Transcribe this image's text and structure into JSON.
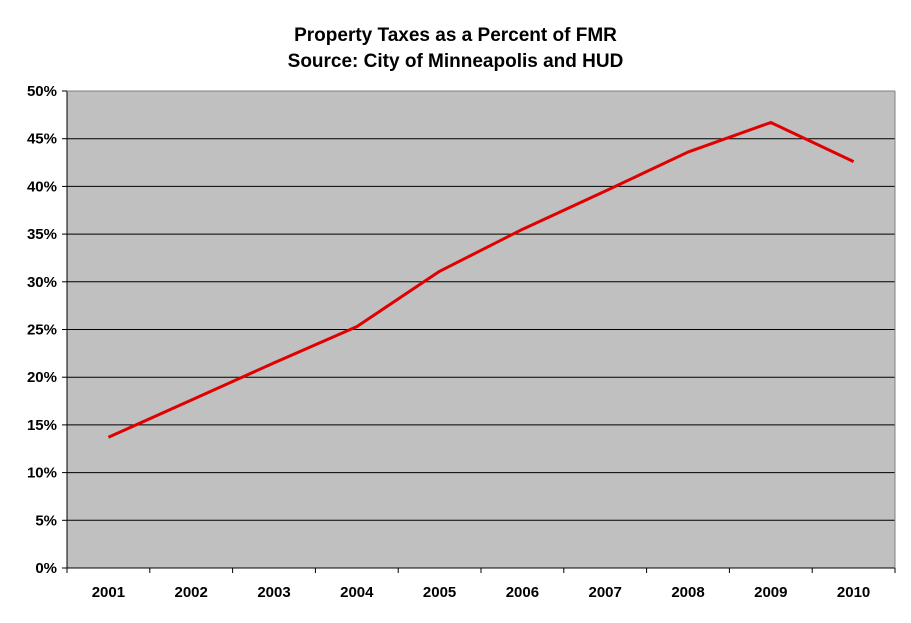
{
  "chart_data": {
    "type": "line",
    "title": "Property Taxes as a Percent of FMR",
    "subtitle": "Source:  City of Minneapolis and HUD",
    "xlabel": "",
    "ylabel": "",
    "categories": [
      "2001",
      "2002",
      "2003",
      "2004",
      "2005",
      "2006",
      "2007",
      "2008",
      "2009",
      "2010"
    ],
    "series": [
      {
        "values": [
          13.7,
          17.6,
          21.5,
          25.3,
          31.1,
          35.5,
          39.5,
          43.6,
          46.7,
          42.6
        ],
        "color": "#e00000"
      }
    ],
    "ylim": [
      0,
      50
    ],
    "yticks": [
      0,
      5,
      10,
      15,
      20,
      25,
      30,
      35,
      40,
      45,
      50
    ],
    "ytick_labels": [
      "0%",
      "5%",
      "10%",
      "15%",
      "20%",
      "25%",
      "30%",
      "35%",
      "40%",
      "45%",
      "50%"
    ],
    "grid": true,
    "plot_background": "#c0c0c0",
    "legend": "none"
  }
}
